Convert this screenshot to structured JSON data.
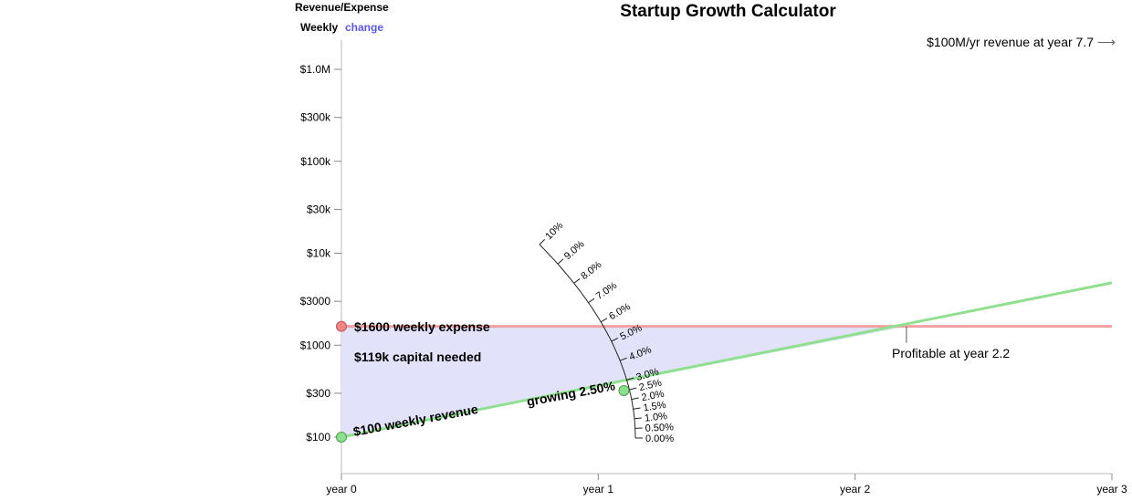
{
  "header": {
    "metric_label": "Revenue/Expense",
    "period_label": "Weekly",
    "change_link": "change"
  },
  "title": "Startup Growth Calculator",
  "goal_text": "$100M/yr revenue at year 7.7",
  "annotations": {
    "expense": "$1600 weekly expense",
    "capital": "$119k capital needed",
    "revenue": "$100 weekly revenue",
    "growth": "growing 2.50%",
    "profitable": "Profitable at year 2.2"
  },
  "colors": {
    "revenue": "#90e090",
    "expense": "#f0a0a0",
    "capital_fill": "#e2e2fb",
    "axis": "#bbbbbb"
  },
  "chart_data": {
    "type": "line",
    "scale": "log",
    "y_ticks": [
      {
        "label": "$1.0M",
        "value": 1000000
      },
      {
        "label": "$300k",
        "value": 300000
      },
      {
        "label": "$100k",
        "value": 100000
      },
      {
        "label": "$30k",
        "value": 30000
      },
      {
        "label": "$10k",
        "value": 10000
      },
      {
        "label": "$3000",
        "value": 3000
      },
      {
        "label": "$1000",
        "value": 1000
      },
      {
        "label": "$300",
        "value": 300
      },
      {
        "label": "$100",
        "value": 100
      }
    ],
    "x_ticks": [
      {
        "label": "year 0",
        "value": 0
      },
      {
        "label": "year 1",
        "value": 1
      },
      {
        "label": "year 2",
        "value": 2
      },
      {
        "label": "year 3",
        "value": 3
      }
    ],
    "xlim": [
      0,
      3
    ],
    "ylim": [
      100,
      1000000
    ],
    "weekly_expense": 1600,
    "initial_weekly_revenue": 100,
    "weekly_growth_pct": 2.5,
    "profitable_year": 2.2,
    "growth_dial": {
      "labels": [
        "10%",
        "9.0%",
        "8.0%",
        "7.0%",
        "6.0%",
        "5.0%",
        "4.0%",
        "3.0%",
        "2.5%",
        "2.0%",
        "1.5%",
        "1.0%",
        "0.50%",
        "0.00%"
      ],
      "values": [
        10,
        9,
        8,
        7,
        6,
        5,
        4,
        3,
        2.5,
        2,
        1.5,
        1,
        0.5,
        0
      ]
    }
  }
}
